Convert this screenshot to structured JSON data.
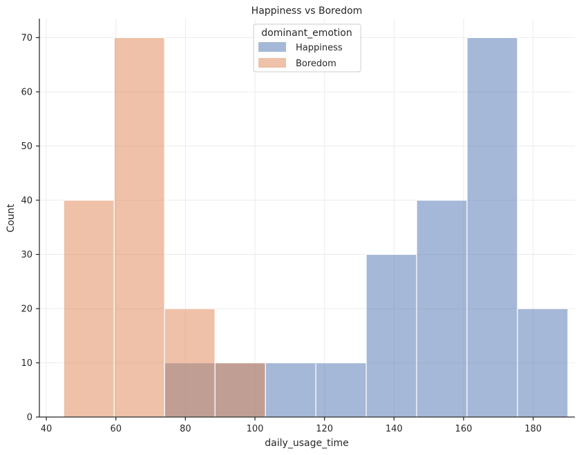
{
  "chart_data": {
    "type": "bar",
    "title": "Happiness vs Boredom",
    "xlabel": "daily_usage_time",
    "ylabel": "Count",
    "xlim": [
      38,
      192
    ],
    "ylim": [
      0,
      73.5
    ],
    "x_ticks": [
      40,
      60,
      80,
      100,
      120,
      140,
      160,
      180
    ],
    "y_ticks": [
      0,
      10,
      20,
      30,
      40,
      50,
      60,
      70
    ],
    "bin_edges": [
      45,
      59.5,
      74,
      88.5,
      103,
      117.5,
      132,
      146.5,
      161,
      175.5,
      190
    ],
    "series": [
      {
        "name": "Happiness",
        "color": "#4c72b0",
        "values": [
          0,
          0,
          10,
          10,
          10,
          10,
          30,
          40,
          70,
          20
        ]
      },
      {
        "name": "Boredom",
        "color": "#dd8452",
        "values": [
          40,
          70,
          20,
          10,
          0,
          0,
          0,
          0,
          0,
          0
        ]
      }
    ],
    "legend": {
      "title": "dominant_emotion",
      "placement": "top-center"
    },
    "grid": true
  }
}
